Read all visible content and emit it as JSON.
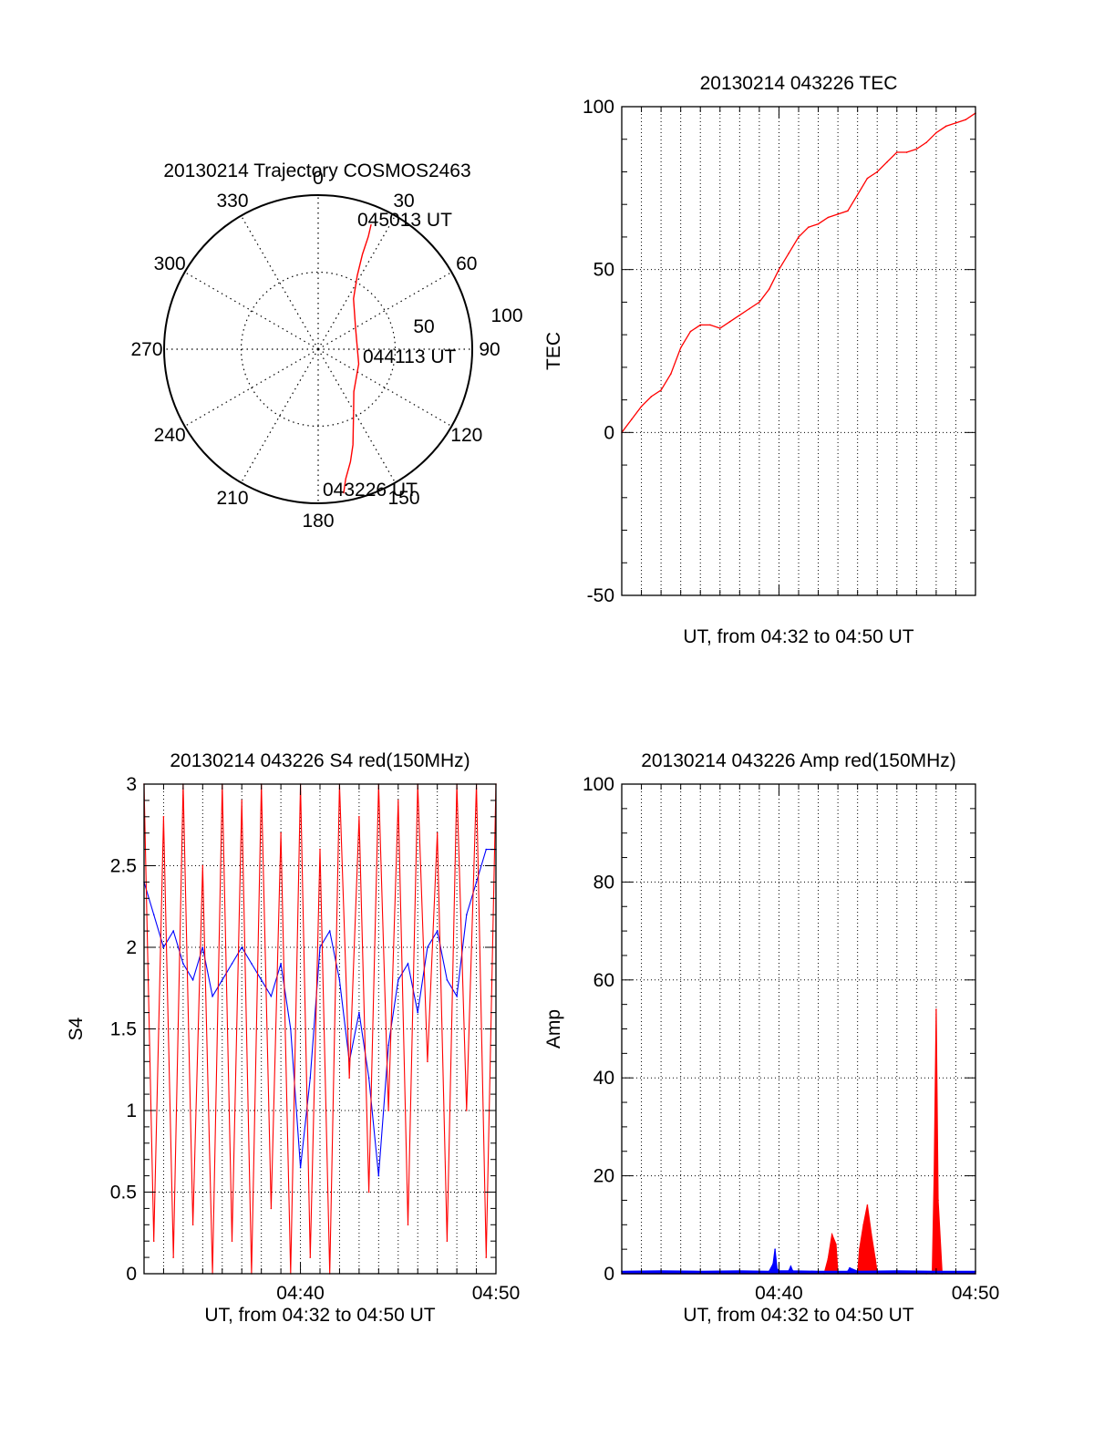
{
  "colors": {
    "red": "#ff0000",
    "blue": "#0000ff",
    "axis": "#000000",
    "grid": "#000000"
  },
  "chart_data": [
    {
      "type": "polar",
      "title": "20130214 Trajectory COSMOS2463",
      "angle_ticks": [
        "0",
        "30",
        "60",
        "90",
        "120",
        "150",
        "180",
        "210",
        "240",
        "270",
        "300",
        "330"
      ],
      "radius_labels": [
        "50",
        "100"
      ],
      "point_labels": {
        "start": "043226 UT",
        "mid": "044113 UT",
        "end": "045013 UT"
      },
      "trajectory": {
        "az": [
          170,
          168,
          164,
          160,
          156,
          150,
          140,
          110,
          60,
          35,
          28,
          25,
          24,
          23
        ],
        "zenith": [
          95,
          86,
          76,
          66,
          56,
          46,
          36,
          28,
          28,
          40,
          54,
          68,
          80,
          88
        ]
      },
      "grid": true
    },
    {
      "type": "line",
      "title": "20130214 043226 TEC",
      "xlabel": "UT, from 04:32 to 04:50 UT",
      "ylabel": "TEC",
      "ylim": [
        -50,
        100
      ],
      "yticks": [
        "-50",
        "0",
        "50",
        "100"
      ],
      "xlim_minutes": [
        0,
        18
      ],
      "grid": true,
      "series": [
        {
          "color": "red",
          "x": [
            0,
            0.5,
            1,
            1.5,
            2,
            2.5,
            3,
            3.5,
            4,
            4.5,
            5,
            5.5,
            6,
            6.5,
            7,
            7.5,
            8,
            8.5,
            9,
            9.5,
            10,
            10.5,
            11,
            11.5,
            12,
            12.5,
            13,
            13.5,
            14,
            14.5,
            15,
            15.5,
            16,
            16.5,
            17,
            17.5,
            18
          ],
          "y": [
            0,
            4,
            8,
            11,
            13,
            18,
            26,
            31,
            33,
            33,
            32,
            34,
            36,
            38,
            40,
            44,
            50,
            55,
            60,
            63,
            64,
            66,
            67,
            68,
            73,
            78,
            80,
            83,
            86,
            86,
            87,
            89,
            92,
            94,
            95,
            96,
            98
          ]
        }
      ]
    },
    {
      "type": "line",
      "title": "20130214 043226 S4 red(150MHz)",
      "xlabel": "UT, from 04:32 to 04:50 UT",
      "ylabel": "S4",
      "ylim": [
        0,
        3
      ],
      "yticks": [
        "0",
        "0.5",
        "1",
        "1.5",
        "2",
        "2.5",
        "3"
      ],
      "xticks": [
        "04:40",
        "04:50"
      ],
      "xlim_minutes": [
        0,
        18
      ],
      "grid": true,
      "series": [
        {
          "color": "blue",
          "x": [
            0,
            0.5,
            1,
            1.5,
            2,
            2.5,
            3,
            3.5,
            4,
            4.5,
            5,
            5.5,
            6,
            6.5,
            7,
            7.5,
            8,
            8.5,
            9,
            9.5,
            10,
            10.5,
            11,
            11.5,
            12,
            12.5,
            13,
            13.5,
            14,
            14.5,
            15,
            15.5,
            16,
            16.5,
            17,
            17.5,
            18
          ],
          "y": [
            2.4,
            2.2,
            2.0,
            2.1,
            1.9,
            1.8,
            2.0,
            1.7,
            1.8,
            1.9,
            2.0,
            1.9,
            1.8,
            1.7,
            1.9,
            1.5,
            0.65,
            1.2,
            2.0,
            2.1,
            1.8,
            1.3,
            1.6,
            1.2,
            0.6,
            1.4,
            1.8,
            1.9,
            1.6,
            2.0,
            2.1,
            1.8,
            1.7,
            2.2,
            2.4,
            2.6,
            2.6
          ]
        },
        {
          "color": "red",
          "x": [
            0,
            0.5,
            1,
            1.5,
            2,
            2.5,
            3,
            3.5,
            4,
            4.5,
            5,
            5.5,
            6,
            6.5,
            7,
            7.5,
            8,
            8.5,
            9,
            9.5,
            10,
            10.5,
            11,
            11.5,
            12,
            12.5,
            13,
            13.5,
            14,
            14.5,
            15,
            15.5,
            16,
            16.5,
            17,
            17.5,
            18
          ],
          "y": [
            3,
            0.2,
            2.8,
            0.1,
            3,
            0.3,
            2.5,
            0,
            3,
            0.2,
            2.9,
            0,
            3,
            0.4,
            2.7,
            0,
            3,
            0.1,
            2.6,
            0,
            3,
            1.2,
            2.8,
            0.5,
            3,
            1.0,
            2.9,
            0.3,
            3,
            1.3,
            2.7,
            0.2,
            3,
            1.0,
            3,
            0.1,
            3
          ]
        }
      ]
    },
    {
      "type": "area",
      "title": "20130214 043226 Amp red(150MHz)",
      "xlabel": "UT, from 04:32 to 04:50 UT",
      "ylabel": "Amp",
      "ylim": [
        0,
        100
      ],
      "yticks": [
        "0",
        "20",
        "40",
        "60",
        "80",
        "100"
      ],
      "xticks": [
        "04:40",
        "04:50"
      ],
      "xlim_minutes": [
        0,
        18
      ],
      "grid": true,
      "series": [
        {
          "color": "red",
          "x": [
            0,
            10.3,
            10.5,
            10.7,
            10.9,
            11.0,
            11.5,
            12.0,
            12.1,
            12.3,
            12.5,
            12.7,
            12.9,
            13.0,
            15.5,
            15.8,
            15.9,
            16.0,
            16.1,
            16.3,
            18
          ],
          "y": [
            0,
            0,
            3,
            8,
            6,
            0,
            0,
            0,
            5,
            10,
            14,
            8,
            3,
            0,
            0,
            0,
            20,
            54,
            15,
            0,
            0
          ]
        },
        {
          "color": "blue",
          "x": [
            0,
            2,
            4,
            6,
            7.5,
            7.7,
            7.8,
            7.9,
            8.0,
            8.5,
            8.6,
            8.7,
            10,
            11.5,
            11.6,
            12,
            14,
            16,
            18
          ],
          "y": [
            0.5,
            0.6,
            0.5,
            0.6,
            0.5,
            2,
            5,
            1,
            0.6,
            0.6,
            1.5,
            0.6,
            0.5,
            0.5,
            1.2,
            0.5,
            0.6,
            0.5,
            0.5
          ]
        }
      ]
    }
  ]
}
